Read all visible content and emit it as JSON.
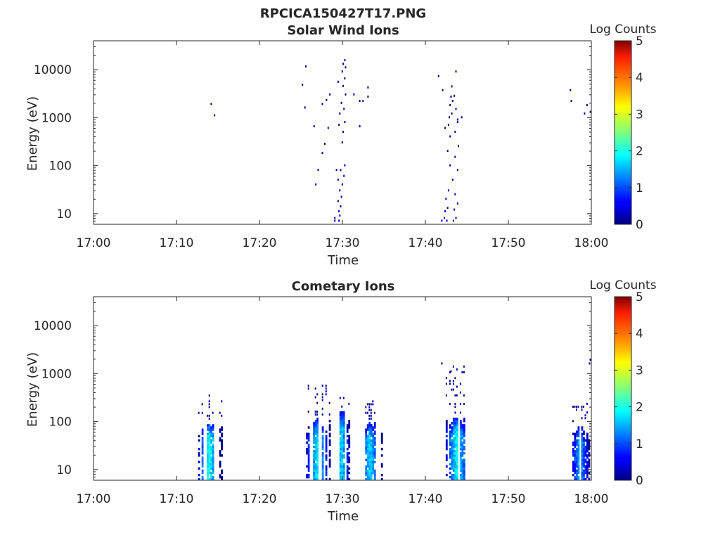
{
  "figure": {
    "title": "RPCICA150427T17.PNG"
  },
  "colorbar": {
    "label": "Log Counts",
    "ticks": [
      "0",
      "1",
      "2",
      "3",
      "4",
      "5"
    ],
    "range": [
      0,
      5
    ],
    "colormap": "jet"
  },
  "chart_data": [
    {
      "type": "heatmap",
      "title": "Solar Wind Ions",
      "xlabel": "Time",
      "ylabel": "Energy (eV)",
      "x_ticks": [
        "17:00",
        "17:10",
        "17:20",
        "17:30",
        "17:40",
        "17:50",
        "18:00"
      ],
      "y_ticks": [
        "10",
        "100",
        "1000",
        "10000"
      ],
      "y_scale": "log",
      "ylim": [
        6,
        40000
      ],
      "xlim_minutes": [
        0,
        60
      ],
      "z_label": "Log Counts",
      "zlim": [
        0,
        5
      ],
      "cells": [
        [
          14.1,
          1900,
          0.1
        ],
        [
          14.5,
          1100,
          0.1
        ],
        [
          25.1,
          4800,
          0.1
        ],
        [
          25.5,
          11500,
          0.1
        ],
        [
          25.4,
          1600,
          0.1
        ],
        [
          26.5,
          650,
          0.1
        ],
        [
          27.5,
          1900,
          0.1
        ],
        [
          28.0,
          2300,
          0.1
        ],
        [
          26.7,
          40,
          0.2
        ],
        [
          27.0,
          80,
          0.2
        ],
        [
          27.5,
          180,
          0.2
        ],
        [
          27.8,
          280,
          0.2
        ],
        [
          28.2,
          600,
          0.2
        ],
        [
          28.4,
          3000,
          0.2
        ],
        [
          29.0,
          8,
          0.2
        ],
        [
          29.0,
          7,
          0.2
        ],
        [
          29.5,
          7,
          0.3
        ],
        [
          29.6,
          9,
          0.3
        ],
        [
          29.5,
          11,
          0.3
        ],
        [
          29.7,
          14,
          0.2
        ],
        [
          29.4,
          18,
          0.2
        ],
        [
          29.8,
          22,
          0.2
        ],
        [
          29.6,
          30,
          0.2
        ],
        [
          29.9,
          40,
          0.2
        ],
        [
          29.4,
          50,
          0.2
        ],
        [
          30.1,
          60,
          0.2
        ],
        [
          29.7,
          80,
          0.2
        ],
        [
          30.2,
          100,
          0.1
        ],
        [
          29.2,
          80,
          0.1
        ],
        [
          29.9,
          300,
          0.1
        ],
        [
          30.0,
          500,
          0.1
        ],
        [
          29.5,
          700,
          0.1
        ],
        [
          30.2,
          800,
          0.1
        ],
        [
          29.6,
          1200,
          0.1
        ],
        [
          30.1,
          1500,
          0.1
        ],
        [
          29.8,
          2000,
          0.1
        ],
        [
          30.3,
          3000,
          0.1
        ],
        [
          30.0,
          4500,
          0.1
        ],
        [
          29.4,
          5500,
          0.1
        ],
        [
          30.2,
          6500,
          0.1
        ],
        [
          29.9,
          9000,
          0.1
        ],
        [
          30.3,
          11000,
          0.1
        ],
        [
          30.0,
          13000,
          0.1
        ],
        [
          30.2,
          15500,
          0.1
        ],
        [
          31.3,
          3000,
          0.1
        ],
        [
          32.0,
          2200,
          0.1
        ],
        [
          32.4,
          2200,
          0.1
        ],
        [
          32.0,
          650,
          0.1
        ],
        [
          33.0,
          4200,
          0.1
        ],
        [
          33.0,
          2700,
          0.1
        ],
        [
          41.9,
          7,
          0.3
        ],
        [
          42.2,
          8,
          0.3
        ],
        [
          42.5,
          7,
          0.3
        ],
        [
          42.3,
          11,
          0.3
        ],
        [
          42.6,
          13,
          0.2
        ],
        [
          42.4,
          20,
          0.2
        ],
        [
          42.7,
          30,
          0.2
        ],
        [
          43.3,
          7,
          0.3
        ],
        [
          43.6,
          8,
          0.3
        ],
        [
          43.4,
          12,
          0.2
        ],
        [
          43.8,
          16,
          0.2
        ],
        [
          43.5,
          25,
          0.2
        ],
        [
          43.2,
          50,
          0.2
        ],
        [
          43.8,
          80,
          0.2
        ],
        [
          42.9,
          100,
          0.2
        ],
        [
          43.5,
          150,
          0.2
        ],
        [
          42.6,
          200,
          0.1
        ],
        [
          43.9,
          250,
          0.1
        ],
        [
          42.9,
          400,
          0.1
        ],
        [
          43.5,
          500,
          0.1
        ],
        [
          42.7,
          700,
          0.1
        ],
        [
          43.8,
          800,
          0.1
        ],
        [
          42.8,
          1000,
          0.1
        ],
        [
          43.1,
          1200,
          0.1
        ],
        [
          43.6,
          1500,
          0.1
        ],
        [
          42.9,
          1800,
          0.1
        ],
        [
          43.2,
          2200,
          0.1
        ],
        [
          43.0,
          2700,
          0.1
        ],
        [
          43.4,
          2800,
          0.1
        ],
        [
          43.8,
          900,
          0.1
        ],
        [
          43.1,
          4400,
          0.1
        ],
        [
          41.5,
          7200,
          0.1
        ],
        [
          42.0,
          3700,
          0.1
        ],
        [
          43.6,
          9000,
          0.1
        ],
        [
          42.3,
          600,
          0.1
        ],
        [
          44.3,
          1000,
          0.1
        ],
        [
          57.4,
          3700,
          0.1
        ],
        [
          57.5,
          2200,
          0.1
        ],
        [
          59.4,
          1800,
          0.1
        ],
        [
          59.8,
          1300,
          0.1
        ],
        [
          59.1,
          1200,
          0.1
        ]
      ]
    },
    {
      "type": "heatmap",
      "title": "Cometary Ions",
      "xlabel": "Time",
      "ylabel": "Energy (eV)",
      "x_ticks": [
        "17:00",
        "17:10",
        "17:20",
        "17:30",
        "17:40",
        "17:50",
        "18:00"
      ],
      "y_ticks": [
        "10",
        "100",
        "1000",
        "10000"
      ],
      "y_scale": "log",
      "ylim": [
        6,
        40000
      ],
      "xlim_minutes": [
        0,
        60
      ],
      "z_label": "Log Counts",
      "zlim": [
        0,
        5
      ],
      "bursts": [
        {
          "t0": 12.6,
          "t1": 15.5,
          "tpeak": 13.8,
          "e_top": 90,
          "peak": 2.2,
          "sparse_top": 380
        },
        {
          "t0": 25.4,
          "t1": 28.5,
          "tpeak": 26.9,
          "e_top": 110,
          "peak": 2.0,
          "sparse_top": 700
        },
        {
          "t0": 28.8,
          "t1": 30.8,
          "tpeak": 29.8,
          "e_top": 160,
          "peak": 2.0,
          "sparse_top": 330
        },
        {
          "t0": 32.1,
          "t1": 34.8,
          "tpeak": 33.2,
          "e_top": 90,
          "peak": 1.9,
          "sparse_top": 330
        },
        {
          "t0": 41.6,
          "t1": 44.6,
          "tpeak": 43.7,
          "e_top": 120,
          "peak": 2.1,
          "sparse_top": 1500
        },
        {
          "t0": 57.5,
          "t1": 59.9,
          "tpeak": 58.5,
          "e_top": 80,
          "peak": 1.7,
          "sparse_top": 260
        }
      ],
      "cells": [
        [
          59.7,
          1600,
          0.1
        ],
        [
          59.8,
          1900,
          0.1
        ],
        [
          41.9,
          1600,
          0.1
        ],
        [
          43.0,
          1100,
          0.1
        ]
      ]
    }
  ]
}
